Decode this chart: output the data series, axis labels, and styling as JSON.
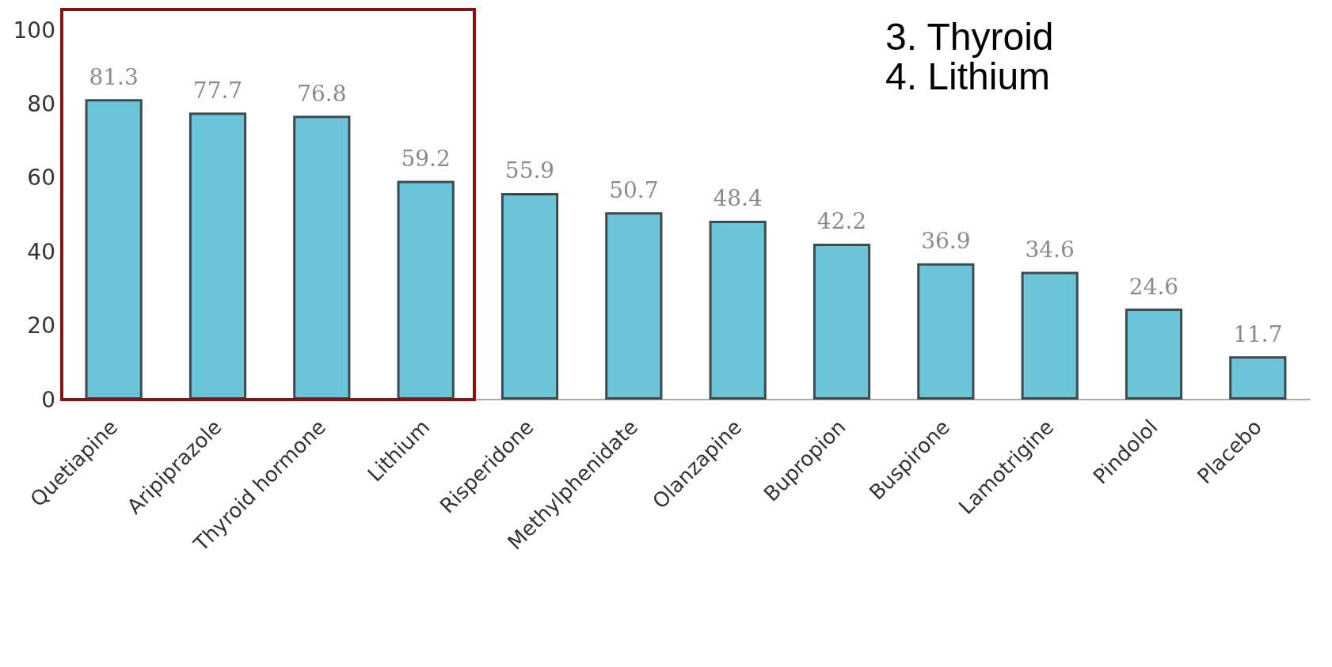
{
  "chart_data": {
    "type": "bar",
    "categories": [
      "Quetiapine",
      "Aripiprazole",
      "Thyroid hormone",
      "Lithium",
      "Risperidone",
      "Methylphenidate",
      "Olanzapine",
      "Bupropion",
      "Buspirone",
      "Lamotrigine",
      "Pindolol",
      "Placebo"
    ],
    "values": [
      81.3,
      77.7,
      76.8,
      59.2,
      55.9,
      50.7,
      48.4,
      42.2,
      36.9,
      34.6,
      24.6,
      11.7
    ],
    "data_labels": true,
    "color": "#6cc4d8",
    "ylim": [
      0,
      100
    ],
    "yticks": [
      0,
      20,
      40,
      60,
      80,
      100
    ],
    "grid": false,
    "annotations": [
      "3. Thyroid",
      "4. Lithium"
    ]
  }
}
